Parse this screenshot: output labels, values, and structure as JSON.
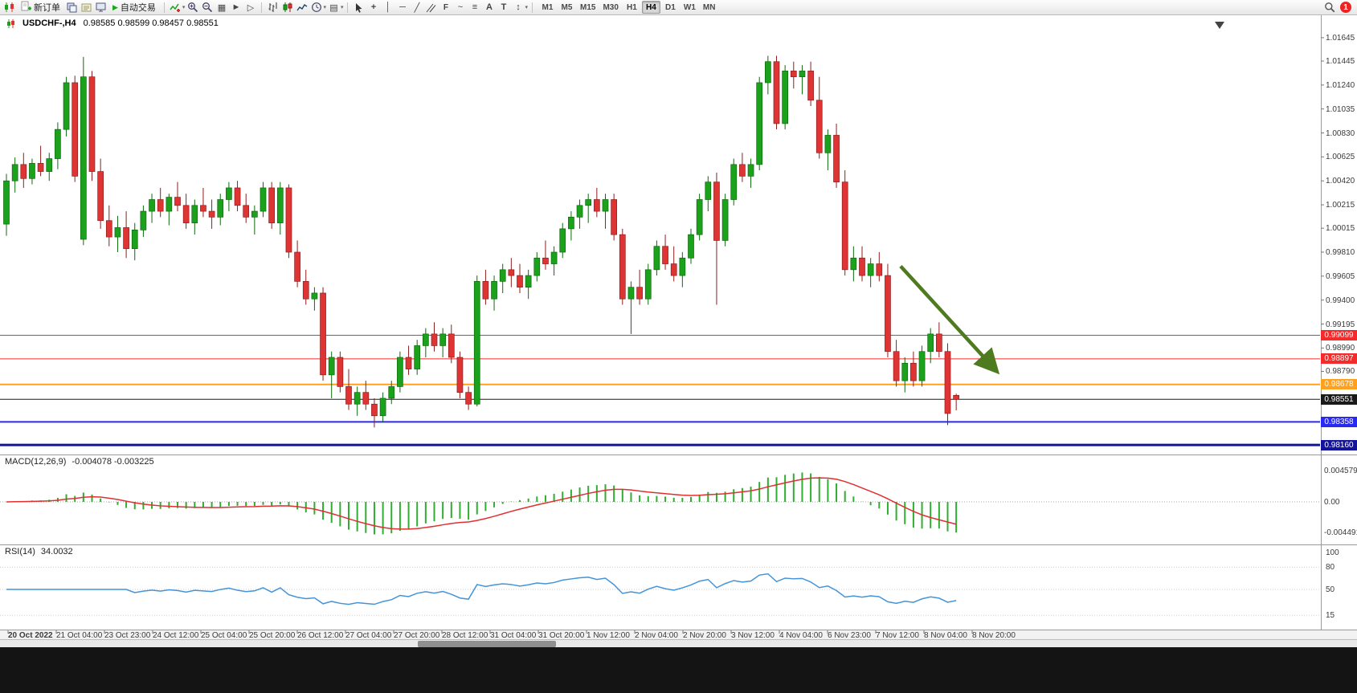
{
  "toolbar": {
    "new_order_label": "新订单",
    "auto_trading_label": "自动交易",
    "timeframes": [
      "M1",
      "M5",
      "M15",
      "M30",
      "H1",
      "H4",
      "D1",
      "W1",
      "MN"
    ],
    "active_timeframe": "H4",
    "notification_count": "1"
  },
  "chart": {
    "caption_symbol": "USDCHF-,H4",
    "caption_ohlc": "0.98585 0.98599 0.98457 0.98551",
    "price_axis_labels": [
      "1.01645",
      "1.01445",
      "1.01240",
      "1.01035",
      "1.00830",
      "1.00625",
      "1.00420",
      "1.00215",
      "1.00015",
      "0.99810",
      "0.99605",
      "0.99400",
      "0.99195",
      "0.98990",
      "0.98790"
    ],
    "hlines": [
      {
        "price": 0.99099,
        "label": "0.99099",
        "color": "#f32b2b",
        "width": 1
      },
      {
        "price": 0.98897,
        "label": "0.98897",
        "color": "#f32b2b",
        "width": 1
      },
      {
        "price": 0.98678,
        "label": "0.98678",
        "color": "#ffa01e",
        "width": 2
      },
      {
        "price": 0.98551,
        "label": "0.98551",
        "color": "#1a1a1a",
        "width": 1,
        "current": true
      },
      {
        "price": 0.98358,
        "label": "0.98358",
        "color": "#2929f0",
        "width": 2
      },
      {
        "price": 0.9816,
        "label": "0.98160",
        "color": "#14149b",
        "width": 3
      }
    ],
    "arrow": {
      "bar1": 104.5,
      "price1": 0.9969,
      "bar2": 115.5,
      "price2": 0.9881,
      "color": "#4f7b20"
    },
    "colors": {
      "up": "#1ba11b",
      "down": "#df3434",
      "up_border": "#0c6b0c",
      "down_border": "#8f1d1d",
      "background": "#ffffff"
    }
  },
  "macd": {
    "label": "MACD(12,26,9)",
    "values": "-0.004078 -0.003225",
    "axis_labels": [
      "0.004579",
      "0.00",
      "-0.004491"
    ],
    "histogram_color": "#2fae2f",
    "signal_color": "#e03030"
  },
  "rsi": {
    "label": "RSI(14)",
    "value": "34.0032",
    "axis_labels": [
      "100",
      "80",
      "50",
      "15"
    ],
    "line_color": "#4394d8"
  },
  "time_axis": [
    "20 Oct 2022",
    "21 Oct 04:00",
    "23 Oct 23:00",
    "24 Oct 12:00",
    "25 Oct 04:00",
    "25 Oct 20:00",
    "26 Oct 12:00",
    "27 Oct 04:00",
    "27 Oct 20:00",
    "28 Oct 12:00",
    "31 Oct 04:00",
    "31 Oct 20:00",
    "1 Nov 12:00",
    "2 Nov 04:00",
    "2 Nov 20:00",
    "3 Nov 12:00",
    "4 Nov 04:00",
    "6 Nov 23:00",
    "7 Nov 12:00",
    "8 Nov 04:00",
    "8 Nov 20:00"
  ],
  "chart_data": {
    "type": "candlestick",
    "symbol": "USDCHF",
    "period": "H4",
    "note": "OHLC per visible bar, left to right",
    "candles": [
      [
        1.0005,
        1.0048,
        0.9995,
        1.0042
      ],
      [
        1.0042,
        1.0062,
        1.0032,
        1.0056
      ],
      [
        1.0056,
        1.0066,
        1.0036,
        1.0044
      ],
      [
        1.0044,
        1.0061,
        1.0039,
        1.0057
      ],
      [
        1.0057,
        1.0072,
        1.0046,
        1.005
      ],
      [
        1.005,
        1.0066,
        1.0042,
        1.0061
      ],
      [
        1.0061,
        1.0092,
        1.0052,
        1.0086
      ],
      [
        1.0086,
        1.0131,
        1.008,
        1.0126
      ],
      [
        1.0126,
        1.0132,
        1.0041,
        1.0046
      ],
      [
        0.9992,
        1.0148,
        0.9987,
        1.0131
      ],
      [
        1.0131,
        1.0136,
        1.0042,
        1.005
      ],
      [
        1.005,
        1.0061,
        1.0001,
        1.0008
      ],
      [
        1.0008,
        1.0021,
        0.9986,
        0.9994
      ],
      [
        0.9994,
        1.0012,
        0.9981,
        1.0002
      ],
      [
        1.0002,
        1.0016,
        0.9976,
        0.9984
      ],
      [
        0.9984,
        1.0006,
        0.9974,
        1.0
      ],
      [
        1.0,
        1.0021,
        0.9994,
        1.0016
      ],
      [
        1.0016,
        1.0031,
        1.0006,
        1.0026
      ],
      [
        1.0026,
        1.0036,
        1.0011,
        1.0016
      ],
      [
        1.0016,
        1.0031,
        1.0004,
        1.0028
      ],
      [
        1.0028,
        1.0041,
        1.0016,
        1.0021
      ],
      [
        1.0021,
        1.0031,
        1.0001,
        1.0006
      ],
      [
        1.0006,
        1.0026,
        0.9996,
        1.0021
      ],
      [
        1.0021,
        1.0036,
        1.0011,
        1.0016
      ],
      [
        1.0016,
        1.0026,
        1.0001,
        1.0011
      ],
      [
        1.0011,
        1.0031,
        1.0004,
        1.0026
      ],
      [
        1.0026,
        1.0041,
        1.0016,
        1.0036
      ],
      [
        1.0036,
        1.0042,
        1.0016,
        1.0021
      ],
      [
        1.0021,
        1.0031,
        1.0006,
        1.0011
      ],
      [
        1.0011,
        1.0021,
        0.9996,
        1.0016
      ],
      [
        1.0016,
        1.0041,
        1.0011,
        1.0036
      ],
      [
        1.0036,
        1.0041,
        1.0001,
        1.0006
      ],
      [
        1.0006,
        1.0041,
        0.9996,
        1.0036
      ],
      [
        1.0036,
        1.0039,
        0.9976,
        0.9981
      ],
      [
        0.9981,
        0.9991,
        0.9951,
        0.9956
      ],
      [
        0.9956,
        0.9966,
        0.9936,
        0.9941
      ],
      [
        0.9941,
        0.9951,
        0.9931,
        0.9946
      ],
      [
        0.9946,
        0.9951,
        0.9871,
        0.9876
      ],
      [
        0.9876,
        0.9896,
        0.9856,
        0.9891
      ],
      [
        0.9891,
        0.9896,
        0.9861,
        0.9866
      ],
      [
        0.9866,
        0.9881,
        0.9846,
        0.9851
      ],
      [
        0.9851,
        0.9866,
        0.9841,
        0.9861
      ],
      [
        0.9861,
        0.9871,
        0.9846,
        0.9851
      ],
      [
        0.9851,
        0.9856,
        0.9831,
        0.9841
      ],
      [
        0.9841,
        0.9861,
        0.9836,
        0.9856
      ],
      [
        0.9856,
        0.9871,
        0.9851,
        0.9866
      ],
      [
        0.9866,
        0.9896,
        0.9861,
        0.9891
      ],
      [
        0.9891,
        0.9901,
        0.9876,
        0.9881
      ],
      [
        0.9881,
        0.9906,
        0.9876,
        0.9901
      ],
      [
        0.9901,
        0.9916,
        0.9891,
        0.9911
      ],
      [
        0.9911,
        0.9921,
        0.9896,
        0.9901
      ],
      [
        0.9901,
        0.9916,
        0.9891,
        0.9911
      ],
      [
        0.9911,
        0.9919,
        0.9886,
        0.9891
      ],
      [
        0.9891,
        0.9896,
        0.9856,
        0.9861
      ],
      [
        0.9861,
        0.9866,
        0.9846,
        0.9851
      ],
      [
        0.9851,
        0.9961,
        0.9849,
        0.9956
      ],
      [
        0.9956,
        0.9966,
        0.9936,
        0.9941
      ],
      [
        0.9941,
        0.9961,
        0.9931,
        0.9956
      ],
      [
        0.9956,
        0.9971,
        0.9946,
        0.9966
      ],
      [
        0.9966,
        0.9976,
        0.9951,
        0.9961
      ],
      [
        0.9961,
        0.9971,
        0.9946,
        0.9951
      ],
      [
        0.9951,
        0.9966,
        0.9941,
        0.9961
      ],
      [
        0.9961,
        0.9981,
        0.9956,
        0.9976
      ],
      [
        0.9976,
        0.9991,
        0.9966,
        0.9971
      ],
      [
        0.9971,
        0.9986,
        0.9961,
        0.9981
      ],
      [
        0.9981,
        1.0006,
        0.9976,
        1.0001
      ],
      [
        1.0001,
        1.0016,
        0.9991,
        1.0011
      ],
      [
        1.0011,
        1.0026,
        1.0001,
        1.0021
      ],
      [
        1.0021,
        1.0031,
        1.0006,
        1.0026
      ],
      [
        1.0026,
        1.0036,
        1.0011,
        1.0016
      ],
      [
        1.0016,
        1.0031,
        1.0001,
        1.0026
      ],
      [
        1.0026,
        1.0031,
        0.9991,
        0.9996
      ],
      [
        0.9996,
        1.0001,
        0.9936,
        0.9941
      ],
      [
        0.9941,
        0.9956,
        0.9911,
        0.9951
      ],
      [
        0.9951,
        0.9966,
        0.9936,
        0.9941
      ],
      [
        0.9941,
        0.9971,
        0.9936,
        0.9966
      ],
      [
        0.9966,
        0.9991,
        0.9961,
        0.9986
      ],
      [
        0.9986,
        0.9996,
        0.9966,
        0.9971
      ],
      [
        0.9971,
        0.9986,
        0.9956,
        0.9961
      ],
      [
        0.9961,
        0.9981,
        0.9951,
        0.9976
      ],
      [
        0.9976,
        1.0001,
        0.9971,
        0.9996
      ],
      [
        0.9996,
        1.0031,
        0.9991,
        1.0026
      ],
      [
        1.0026,
        1.0046,
        1.0016,
        1.0041
      ],
      [
        1.0041,
        1.0049,
        0.9936,
        0.9991
      ],
      [
        0.9991,
        1.0031,
        0.9986,
        1.0026
      ],
      [
        1.0026,
        1.0061,
        1.0021,
        1.0056
      ],
      [
        1.0056,
        1.0066,
        1.0041,
        1.0046
      ],
      [
        1.0046,
        1.0061,
        1.0036,
        1.0056
      ],
      [
        1.0056,
        1.0131,
        1.0051,
        1.0126
      ],
      [
        1.0126,
        1.0149,
        1.0116,
        1.0144
      ],
      [
        1.0144,
        1.0149,
        1.0086,
        1.0091
      ],
      [
        1.0091,
        1.0141,
        1.0086,
        1.0136
      ],
      [
        1.0136,
        1.0144,
        1.0121,
        1.0131
      ],
      [
        1.0131,
        1.0141,
        1.0116,
        1.0136
      ],
      [
        1.0136,
        1.0144,
        1.0106,
        1.0111
      ],
      [
        1.0111,
        1.0131,
        1.0061,
        1.0066
      ],
      [
        1.0066,
        1.0086,
        1.0051,
        1.0081
      ],
      [
        1.0081,
        1.0091,
        1.0036,
        1.0041
      ],
      [
        1.0041,
        1.0051,
        0.9961,
        0.9966
      ],
      [
        0.9966,
        0.9986,
        0.9956,
        0.9976
      ],
      [
        0.9976,
        0.9986,
        0.9956,
        0.9961
      ],
      [
        0.9961,
        0.9976,
        0.9951,
        0.9971
      ],
      [
        0.9971,
        0.9981,
        0.9956,
        0.9961
      ],
      [
        0.9961,
        0.9971,
        0.9891,
        0.9896
      ],
      [
        0.9896,
        0.9906,
        0.9866,
        0.9871
      ],
      [
        0.9871,
        0.9891,
        0.9861,
        0.9886
      ],
      [
        0.9886,
        0.9896,
        0.9866,
        0.9871
      ],
      [
        0.9871,
        0.9901,
        0.9866,
        0.9896
      ],
      [
        0.9896,
        0.9916,
        0.9886,
        0.9911
      ],
      [
        0.9911,
        0.9921,
        0.9891,
        0.9896
      ],
      [
        0.9896,
        0.9903,
        0.9833,
        0.9843
      ],
      [
        0.98585,
        0.98599,
        0.98457,
        0.98551
      ]
    ]
  }
}
